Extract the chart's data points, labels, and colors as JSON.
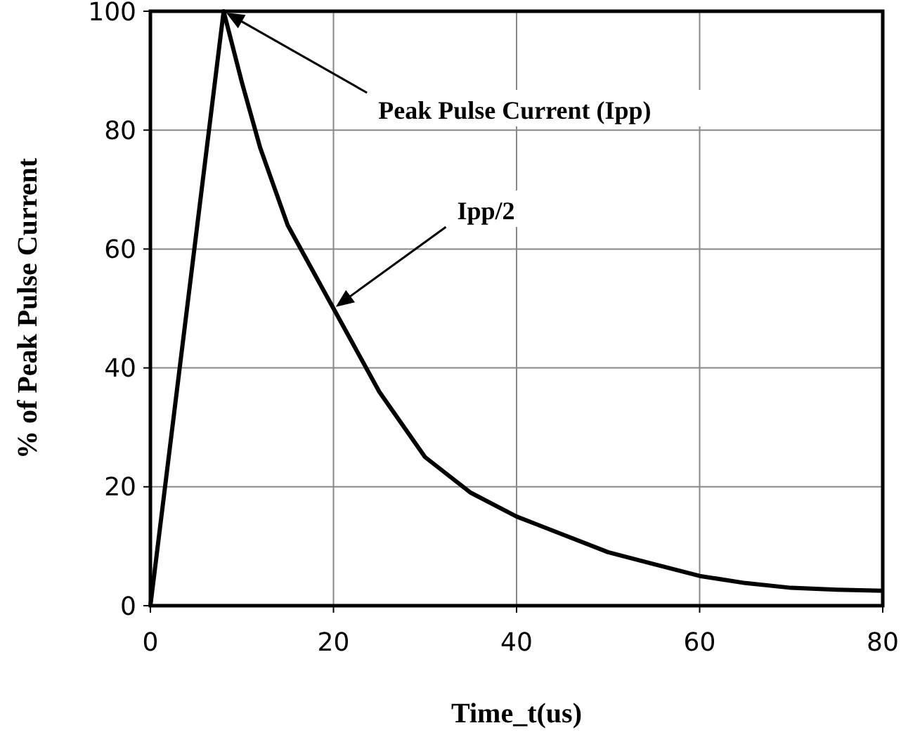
{
  "chart_data": {
    "type": "line",
    "xlabel": "Time_t(us)",
    "ylabel": "% of Peak Pulse Current",
    "x": [
      0,
      8,
      10,
      12,
      15,
      20,
      25,
      30,
      35,
      40,
      45,
      50,
      55,
      60,
      65,
      70,
      75,
      80
    ],
    "series": [
      {
        "color": "#000000",
        "values": [
          0,
          100,
          88,
          77,
          64,
          50,
          36,
          25,
          19,
          15,
          12,
          9,
          7,
          5,
          3.8,
          3,
          2.7,
          2.5
        ]
      }
    ],
    "xlim": [
      0,
      80
    ],
    "xticks": [
      0,
      20,
      40,
      60,
      80
    ],
    "ylim": [
      0,
      100
    ],
    "yticks": [
      0,
      20,
      40,
      60,
      80,
      100
    ],
    "grid": true,
    "marker": "none",
    "line_style": "solid",
    "annotations": [
      {
        "text": "Peak Pulse Current (Ipp)",
        "x": 8,
        "y": 100
      },
      {
        "text": "Ipp/2",
        "x": 20,
        "y": 50
      }
    ]
  }
}
